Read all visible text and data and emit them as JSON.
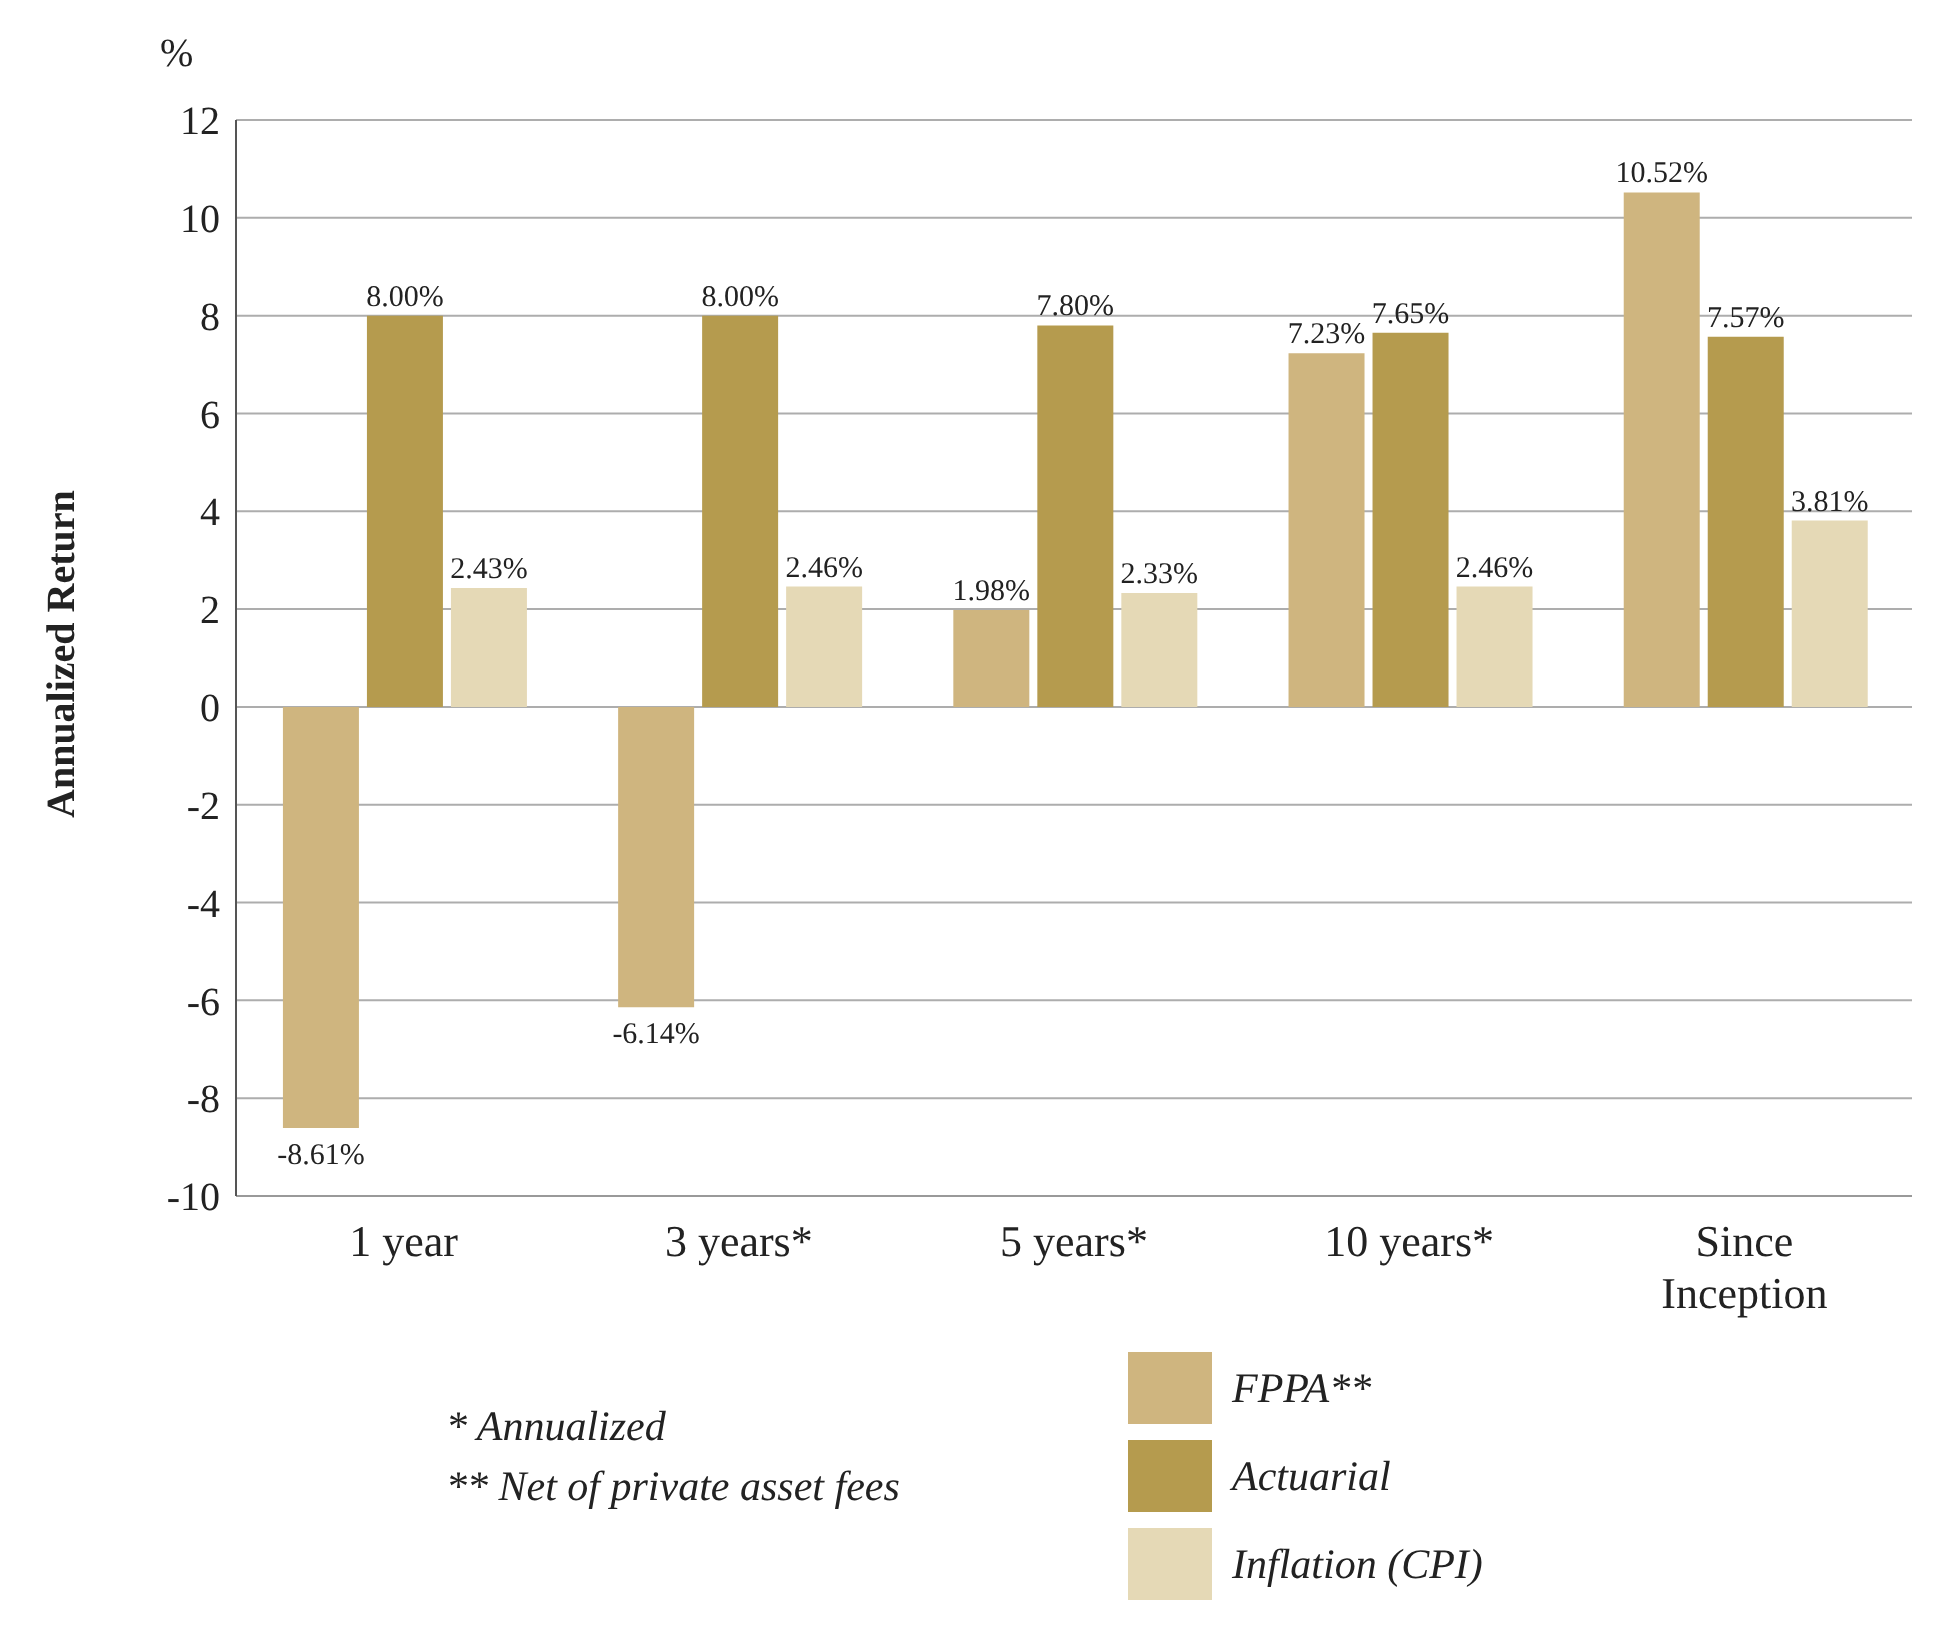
{
  "chart_data": {
    "type": "bar",
    "ylabel": "Annualized Return",
    "categories": [
      "1 year",
      "3 years*",
      "5 years*",
      "10 years*",
      "Since Inception"
    ],
    "series": [
      {
        "name": "FPPA**",
        "color": "#cfb57f",
        "values": [
          -8.61,
          -6.14,
          1.98,
          7.23,
          10.52
        ],
        "value_labels": [
          "-8.61%",
          "-6.14%",
          "1.98%",
          "7.23%",
          "10.52%"
        ]
      },
      {
        "name": "Actuarial",
        "color": "#b59b4e",
        "values": [
          8.0,
          8.0,
          7.8,
          7.65,
          7.57
        ],
        "value_labels": [
          "8.00%",
          "8.00%",
          "7.80%",
          "7.65%",
          "7.57%"
        ]
      },
      {
        "name": "Inflation (CPI)",
        "color": "#e5d9b6",
        "values": [
          2.43,
          2.46,
          2.33,
          2.46,
          3.81
        ],
        "value_labels": [
          "2.43%",
          "2.46%",
          "2.33%",
          "2.46%",
          "3.81%"
        ]
      }
    ],
    "ylim": [
      -10,
      12
    ],
    "yticks": [
      -10,
      -8,
      -6,
      -4,
      -2,
      0,
      2,
      4,
      6,
      8,
      10,
      12
    ],
    "grid": "y",
    "legend": "bottom right",
    "annotations": [
      "%",
      "* Annualized",
      "** Net of private asset fees"
    ]
  }
}
